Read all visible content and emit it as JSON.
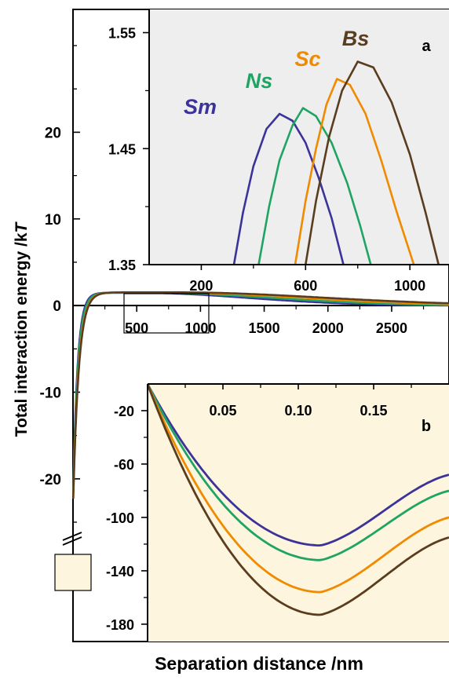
{
  "chart_data": [
    {
      "id": "main",
      "type": "line",
      "ylabel_prefix": "Total interaction energy /k",
      "ylabel_italic": "T",
      "xlabel": "Separation distance /nm",
      "xlim": [
        0,
        2950
      ],
      "ylim": [
        -25,
        32
      ],
      "x_ticks": [
        500,
        1000,
        1500,
        2000,
        2500
      ],
      "x_tick_labels": [
        "500",
        "1000",
        "1500",
        "2000",
        "2500"
      ],
      "y_ticks": [
        20,
        10,
        0,
        -10,
        -20
      ],
      "y_tick_labels": [
        "20",
        "10",
        "0",
        "-10",
        "-20"
      ],
      "y_axis_break": true,
      "grid": false,
      "series": [
        {
          "key": "Sm",
          "color": "#3b3399",
          "peak_x": 500,
          "peak_y": 1.48,
          "decay": 900
        },
        {
          "key": "Ns",
          "color": "#1fa463",
          "peak_x": 590,
          "peak_y": 1.485,
          "decay": 1000
        },
        {
          "key": "Sc",
          "color": "#f08a00",
          "peak_x": 720,
          "peak_y": 1.51,
          "decay": 1100
        },
        {
          "key": "Bs",
          "color": "#5a3c1e",
          "peak_x": 800,
          "peak_y": 1.525,
          "decay": 1200
        }
      ]
    },
    {
      "id": "inset_a",
      "type": "line",
      "panel_label": "a",
      "background": "#eeeeee",
      "xlim": [
        0,
        1150
      ],
      "ylim": [
        1.35,
        1.57
      ],
      "x_ticks": [
        200,
        600,
        1000
      ],
      "x_tick_labels": [
        "200",
        "600",
        "1000"
      ],
      "y_ticks": [
        1.55,
        1.45,
        1.35
      ],
      "y_tick_labels": [
        "1.55",
        "1.45",
        "1.35"
      ],
      "series": [
        {
          "name": "Sm",
          "color": "#3b3399",
          "x": [
            325,
            360,
            400,
            450,
            500,
            550,
            600,
            650,
            700,
            745
          ],
          "y": [
            1.35,
            1.395,
            1.435,
            1.467,
            1.48,
            1.474,
            1.455,
            1.425,
            1.39,
            1.35
          ]
        },
        {
          "name": "Ns",
          "color": "#1fa463",
          "x": [
            420,
            460,
            500,
            550,
            590,
            640,
            700,
            760,
            810,
            850
          ],
          "y": [
            1.35,
            1.4,
            1.44,
            1.47,
            1.485,
            1.478,
            1.455,
            1.42,
            1.383,
            1.35
          ]
        },
        {
          "name": "Sc",
          "color": "#f08a00",
          "x": [
            560,
            600,
            640,
            680,
            720,
            770,
            830,
            890,
            950,
            1015
          ],
          "y": [
            1.35,
            1.405,
            1.45,
            1.488,
            1.51,
            1.505,
            1.48,
            1.44,
            1.395,
            1.35
          ]
        },
        {
          "name": "Bs",
          "color": "#5a3c1e",
          "x": [
            600,
            640,
            690,
            740,
            800,
            860,
            930,
            1000,
            1060,
            1110
          ],
          "y": [
            1.35,
            1.405,
            1.46,
            1.5,
            1.525,
            1.52,
            1.49,
            1.445,
            1.395,
            1.35
          ]
        }
      ]
    },
    {
      "id": "inset_b",
      "type": "line",
      "panel_label": "b",
      "background": "#fdf5dd",
      "xlim": [
        0,
        0.2
      ],
      "ylim": [
        -193,
        0
      ],
      "x_ticks": [
        0.05,
        0.1,
        0.15
      ],
      "x_tick_labels": [
        "0.05",
        "0.10",
        "0.15"
      ],
      "y_ticks": [
        -20,
        -60,
        -100,
        -140,
        -180
      ],
      "y_tick_labels": [
        "-20",
        "-60",
        "-100",
        "-140",
        "-180"
      ],
      "series": [
        {
          "name": "Sm",
          "color": "#3b3399",
          "min_x": 0.115,
          "min_y": -121,
          "end_y": -68
        },
        {
          "name": "Ns",
          "color": "#1fa463",
          "min_x": 0.115,
          "min_y": -132,
          "end_y": -80
        },
        {
          "name": "Sc",
          "color": "#f08a00",
          "min_x": 0.115,
          "min_y": -156,
          "end_y": -100
        },
        {
          "name": "Bs",
          "color": "#5a3c1e",
          "min_x": 0.115,
          "min_y": -173,
          "end_y": -115
        }
      ]
    }
  ]
}
